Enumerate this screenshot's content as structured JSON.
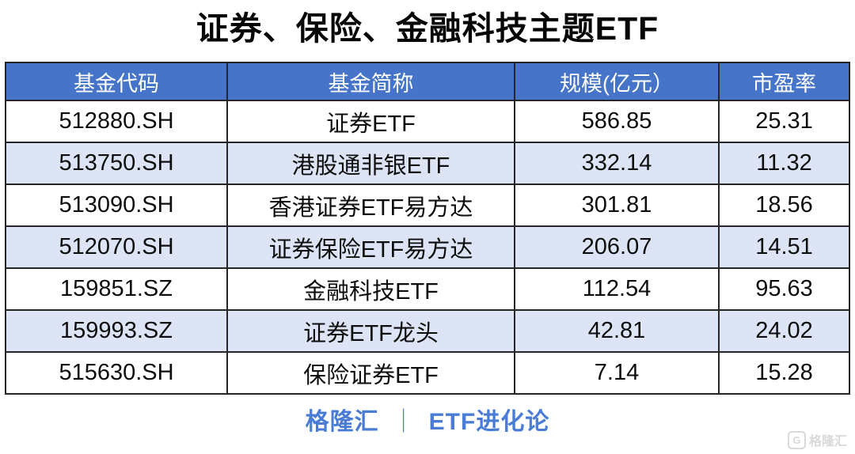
{
  "title": "证券、保险、金融科技主题ETF",
  "table": {
    "columns": [
      "基金代码",
      "基金简称",
      "规模(亿元）",
      "市盈率"
    ],
    "rows": [
      [
        "512880.SH",
        "证券ETF",
        "586.85",
        "25.31"
      ],
      [
        "513750.SH",
        "港股通非银ETF",
        "332.14",
        "11.32"
      ],
      [
        "513090.SH",
        "香港证券ETF易方达",
        "301.81",
        "18.56"
      ],
      [
        "512070.SH",
        "证券保险ETF易方达",
        "206.07",
        "14.51"
      ],
      [
        "159851.SZ",
        "金融科技ETF",
        "112.54",
        "95.63"
      ],
      [
        "159993.SZ",
        "证券ETF龙头",
        "42.81",
        "24.02"
      ],
      [
        "515630.SH",
        "保险证券ETF",
        "7.14",
        "15.28"
      ]
    ]
  },
  "footer": {
    "brand": "格隆汇",
    "separator": "｜",
    "series": "ETF进化论"
  },
  "watermark": {
    "logo_letter": "G",
    "text": "格隆汇"
  },
  "colors": {
    "header_bg": "#4674C9",
    "alt_row_bg": "#DCE4F5",
    "border": "#262629",
    "footer_text": "#4A7CD6",
    "title_text": "#060606",
    "watermark": "#d9d9d9"
  },
  "chart_data": {
    "type": "table",
    "title": "证券、保险、金融科技主题ETF",
    "columns": [
      "基金代码",
      "基金简称",
      "规模(亿元）",
      "市盈率"
    ],
    "rows": [
      {
        "code": "512880.SH",
        "name": "证券ETF",
        "scale_yi_yuan": 586.85,
        "pe_ratio": 25.31
      },
      {
        "code": "513750.SH",
        "name": "港股通非银ETF",
        "scale_yi_yuan": 332.14,
        "pe_ratio": 11.32
      },
      {
        "code": "513090.SH",
        "name": "香港证券ETF易方达",
        "scale_yi_yuan": 301.81,
        "pe_ratio": 18.56
      },
      {
        "code": "512070.SH",
        "name": "证券保险ETF易方达",
        "scale_yi_yuan": 206.07,
        "pe_ratio": 14.51
      },
      {
        "code": "159851.SZ",
        "name": "金融科技ETF",
        "scale_yi_yuan": 112.54,
        "pe_ratio": 95.63
      },
      {
        "code": "159993.SZ",
        "name": "证券ETF龙头",
        "scale_yi_yuan": 42.81,
        "pe_ratio": 24.02
      },
      {
        "code": "515630.SH",
        "name": "保险证券ETF",
        "scale_yi_yuan": 7.14,
        "pe_ratio": 15.28
      }
    ],
    "source_footer": "格隆汇 ｜ ETF进化论"
  }
}
